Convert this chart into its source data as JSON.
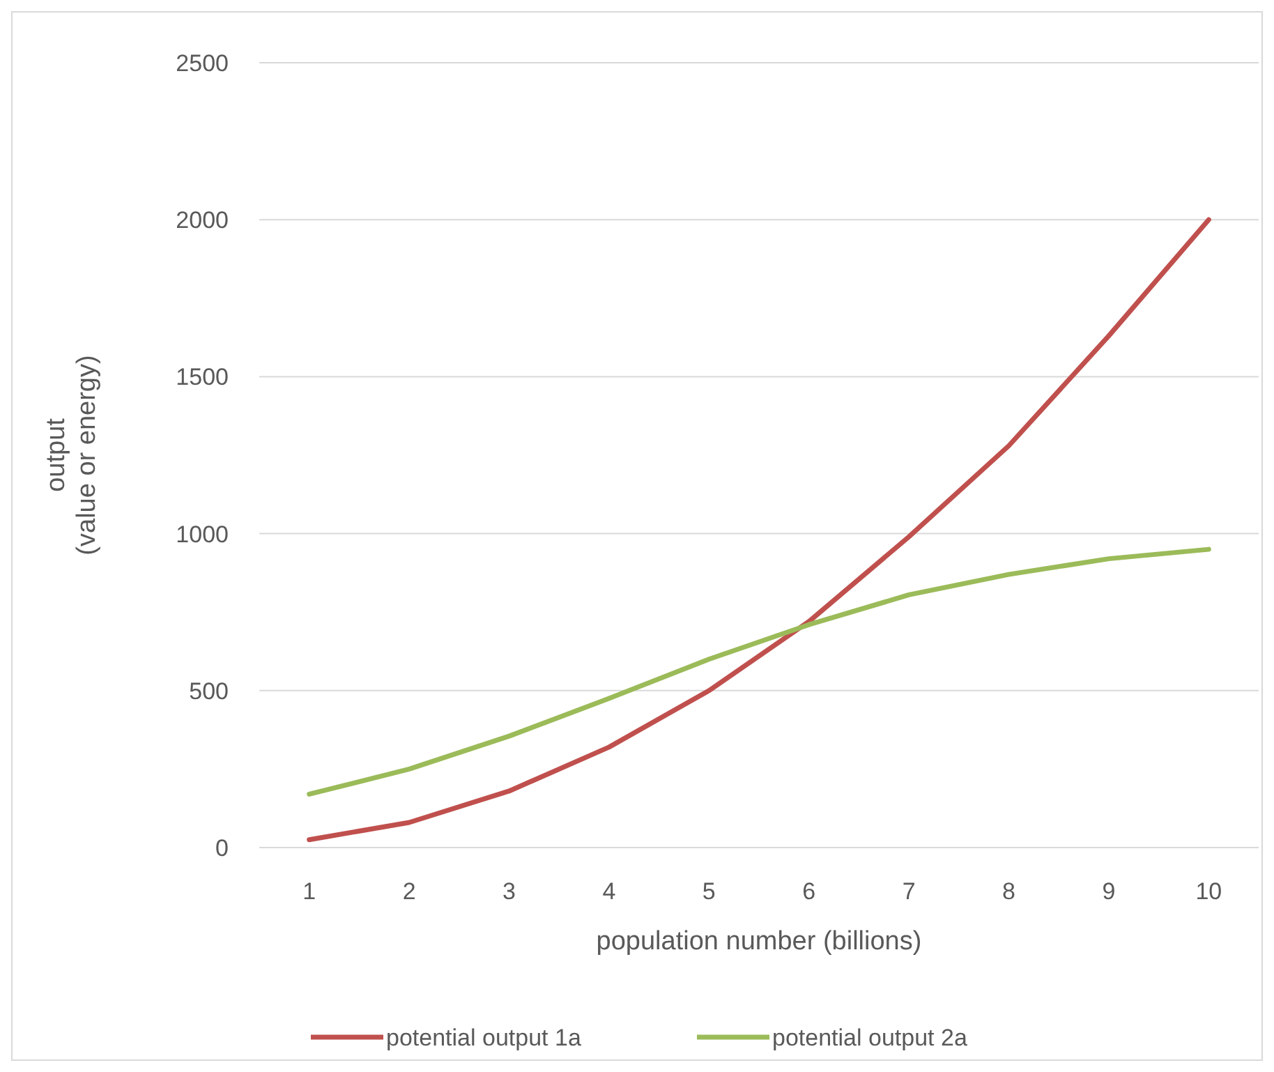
{
  "chart_data": {
    "type": "line",
    "xlabel": "population number (billions)",
    "ylabel": "output\n(value or energy)",
    "categories": [
      "1",
      "2",
      "3",
      "4",
      "5",
      "6",
      "7",
      "8",
      "9",
      "10"
    ],
    "ylim": [
      0,
      2500
    ],
    "yticks": [
      0,
      500,
      1000,
      1500,
      2000,
      2500
    ],
    "grid": "y",
    "legend": "bottom",
    "marker": "none",
    "line_style": "solid",
    "series": [
      {
        "name": "potential output 1a",
        "color": "#c0504d",
        "values": [
          25,
          80,
          180,
          320,
          500,
          720,
          990,
          1280,
          1630,
          2000
        ]
      },
      {
        "name": "potential output 2a",
        "color": "#9bbb59",
        "values": [
          170,
          250,
          355,
          475,
          600,
          710,
          805,
          870,
          920,
          950
        ]
      }
    ]
  }
}
